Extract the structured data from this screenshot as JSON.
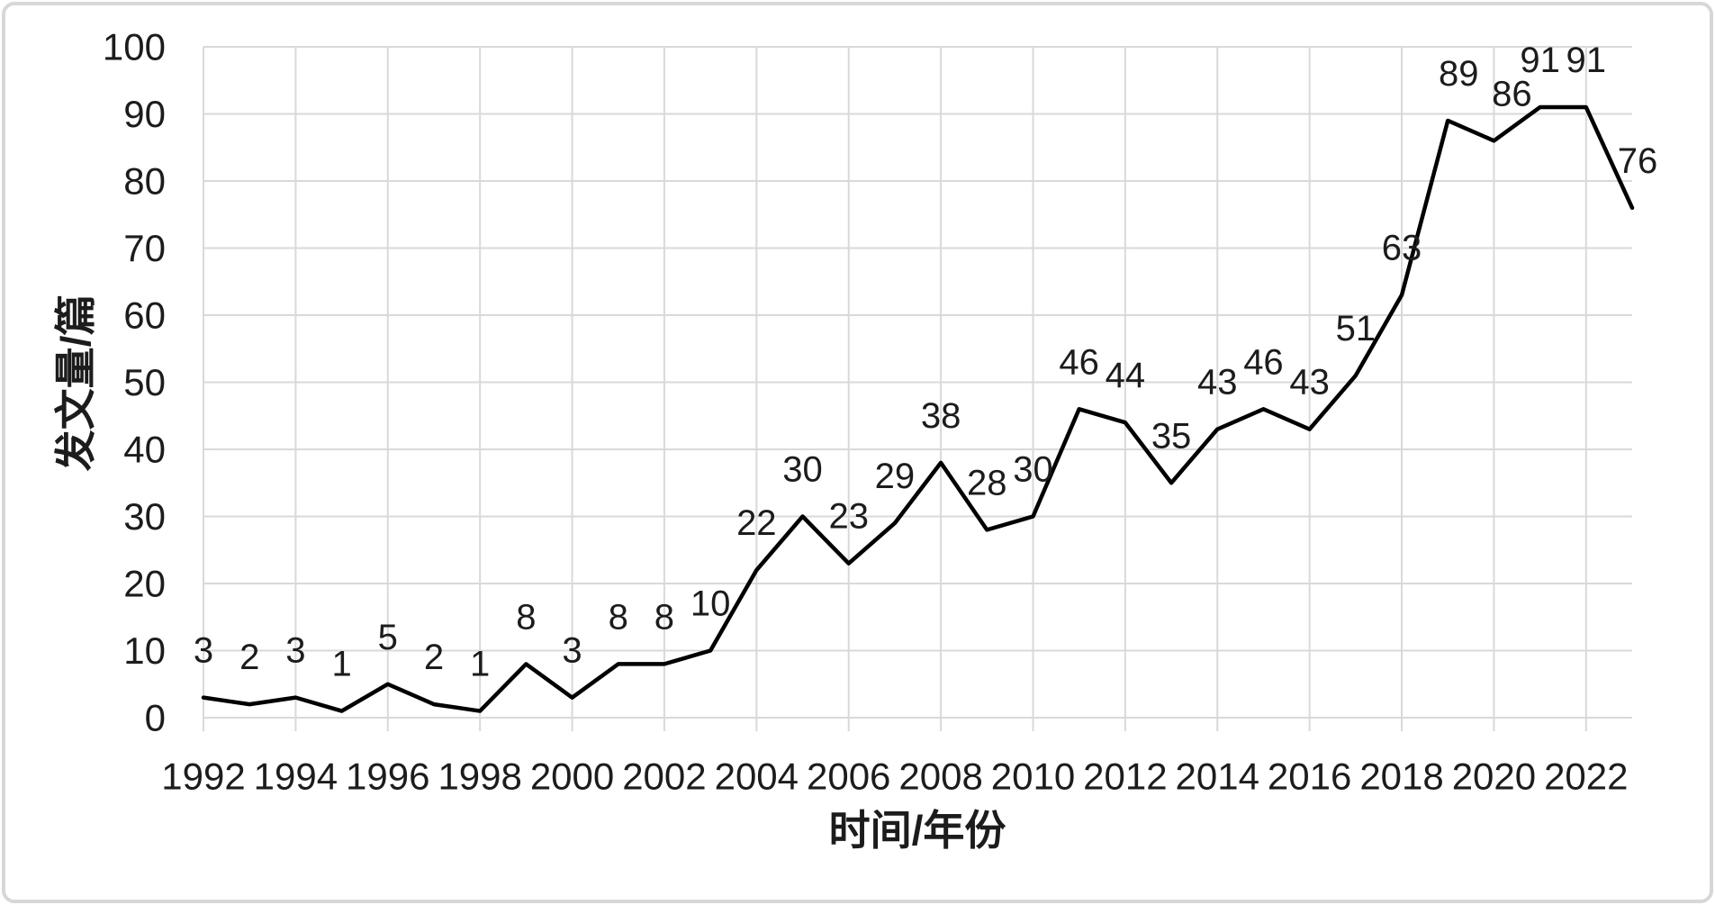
{
  "chart_data": {
    "type": "line",
    "title": "",
    "xlabel": "时间/年份",
    "ylabel": "发文量/篇",
    "x": [
      1992,
      1993,
      1994,
      1995,
      1996,
      1997,
      1998,
      1999,
      2000,
      2001,
      2002,
      2003,
      2004,
      2005,
      2006,
      2007,
      2008,
      2009,
      2010,
      2011,
      2012,
      2013,
      2014,
      2015,
      2016,
      2017,
      2018,
      2019,
      2020,
      2021,
      2022,
      2023
    ],
    "series": [
      {
        "name": "发文量",
        "values": [
          3,
          2,
          3,
          1,
          5,
          2,
          1,
          8,
          3,
          8,
          8,
          10,
          22,
          30,
          23,
          29,
          38,
          28,
          30,
          46,
          44,
          35,
          43,
          46,
          43,
          51,
          63,
          89,
          86,
          91,
          91,
          76
        ]
      }
    ],
    "data_labels_visible": true,
    "xlim": [
      1992,
      2023
    ],
    "ylim": [
      0,
      100
    ],
    "ytick_interval": 10,
    "xtick_interval": 2,
    "yticks": [
      0,
      10,
      20,
      30,
      40,
      50,
      60,
      70,
      80,
      90,
      100
    ],
    "xticks": [
      1992,
      1994,
      1996,
      1998,
      2000,
      2002,
      2004,
      2006,
      2008,
      2010,
      2012,
      2014,
      2016,
      2018,
      2020,
      2022
    ],
    "grid": "both",
    "legend": "none",
    "colors": {
      "line": "#000000",
      "gridline": "#d9d9d9",
      "text": "#1c1c1c",
      "frame_border": "#d7d7d7",
      "background": "#ffffff"
    }
  }
}
